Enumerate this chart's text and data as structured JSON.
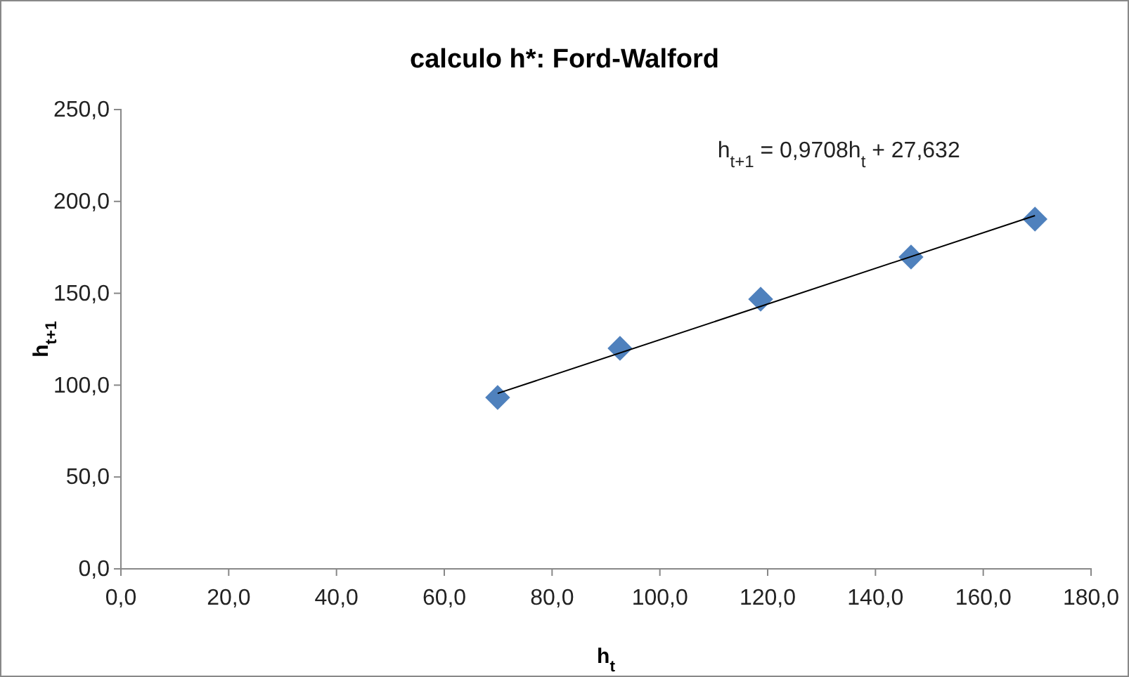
{
  "chart_data": {
    "type": "scatter",
    "title": "calculo h*: Ford-Walford",
    "xlabel": "h$_{t}$",
    "ylabel": "h$_{t+1}$",
    "xlim": [
      0,
      180
    ],
    "ylim": [
      0,
      250
    ],
    "xticks": [
      {
        "value": 0,
        "label": "0,0"
      },
      {
        "value": 20,
        "label": "20,0"
      },
      {
        "value": 40,
        "label": "40,0"
      },
      {
        "value": 60,
        "label": "60,0"
      },
      {
        "value": 80,
        "label": "80,0"
      },
      {
        "value": 100,
        "label": "100,0"
      },
      {
        "value": 120,
        "label": "120,0"
      },
      {
        "value": 140,
        "label": "140,0"
      },
      {
        "value": 160,
        "label": "160,0"
      },
      {
        "value": 180,
        "label": "180,0"
      }
    ],
    "yticks": [
      {
        "value": 0,
        "label": "0,0"
      },
      {
        "value": 50,
        "label": "50,0"
      },
      {
        "value": 100,
        "label": "100,0"
      },
      {
        "value": 150,
        "label": "150,0"
      },
      {
        "value": 200,
        "label": "200,0"
      },
      {
        "value": 250,
        "label": "250,0"
      }
    ],
    "marker": "diamond",
    "grid": false,
    "annotations": [
      "h$_{t+1}$ = 0,9708h$_{t}$ + 27,632"
    ],
    "series": [
      {
        "color": "#4f81bd",
        "x": [
          69.9,
          92.6,
          118.7,
          146.6,
          169.6
        ],
        "values": [
          93.3,
          120.0,
          146.8,
          169.7,
          190.4
        ]
      },
      {
        "type": "line",
        "marker": "none",
        "color": "#000000",
        "x": [
          69.9,
          169.6
        ],
        "values": [
          95.5,
          192.3
        ]
      }
    ]
  }
}
